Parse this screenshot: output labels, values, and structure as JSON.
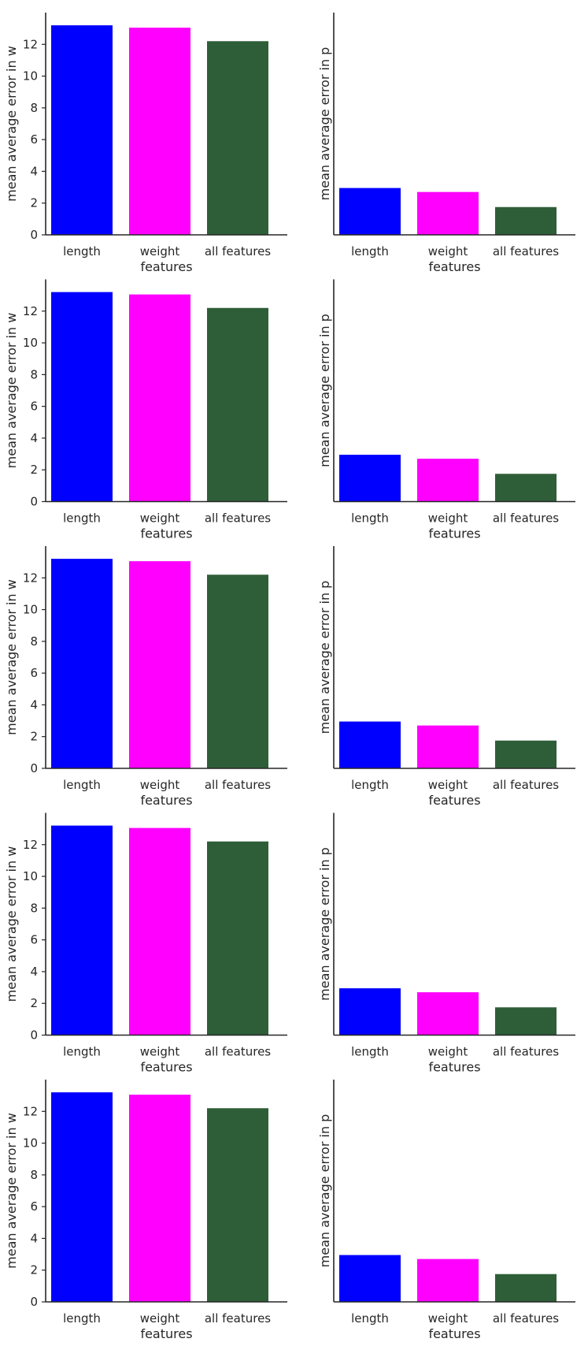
{
  "colors": {
    "length": "#0000ff",
    "weight": "#ff00ff",
    "all_features": "#2e5e38",
    "axis": "#262626",
    "background": "#ffffff"
  },
  "chart_data": [
    {
      "type": "bar",
      "categories": [
        "length",
        "weight",
        "all features"
      ],
      "values": [
        13.2,
        13.05,
        12.2
      ],
      "xlabel": "features",
      "ylabel": "mean average error in w",
      "ylim": [
        0,
        14
      ],
      "yticks": [
        0,
        2,
        4,
        6,
        8,
        10,
        12
      ],
      "grid": false
    },
    {
      "type": "bar",
      "categories": [
        "length",
        "weight",
        "all features"
      ],
      "values": [
        2.95,
        2.7,
        1.75
      ],
      "xlabel": "features",
      "ylabel": "mean average error in p",
      "ylim": [
        0,
        14
      ],
      "yticks": [],
      "grid": false
    },
    {
      "type": "bar",
      "categories": [
        "length",
        "weight",
        "all features"
      ],
      "values": [
        13.2,
        13.05,
        12.2
      ],
      "xlabel": "features",
      "ylabel": "mean average error in w",
      "ylim": [
        0,
        14
      ],
      "yticks": [
        0,
        2,
        4,
        6,
        8,
        10,
        12
      ],
      "grid": false
    },
    {
      "type": "bar",
      "categories": [
        "length",
        "weight",
        "all features"
      ],
      "values": [
        2.95,
        2.7,
        1.75
      ],
      "xlabel": "features",
      "ylabel": "mean average error in p",
      "ylim": [
        0,
        14
      ],
      "yticks": [],
      "grid": false
    },
    {
      "type": "bar",
      "categories": [
        "length",
        "weight",
        "all features"
      ],
      "values": [
        13.2,
        13.05,
        12.2
      ],
      "xlabel": "features",
      "ylabel": "mean average error in w",
      "ylim": [
        0,
        14
      ],
      "yticks": [
        0,
        2,
        4,
        6,
        8,
        10,
        12
      ],
      "grid": false
    },
    {
      "type": "bar",
      "categories": [
        "length",
        "weight",
        "all features"
      ],
      "values": [
        2.95,
        2.7,
        1.75
      ],
      "xlabel": "features",
      "ylabel": "mean average error in p",
      "ylim": [
        0,
        14
      ],
      "yticks": [],
      "grid": false
    },
    {
      "type": "bar",
      "categories": [
        "length",
        "weight",
        "all features"
      ],
      "values": [
        13.2,
        13.05,
        12.2
      ],
      "xlabel": "features",
      "ylabel": "mean average error in w",
      "ylim": [
        0,
        14
      ],
      "yticks": [
        0,
        2,
        4,
        6,
        8,
        10,
        12
      ],
      "grid": false
    },
    {
      "type": "bar",
      "categories": [
        "length",
        "weight",
        "all features"
      ],
      "values": [
        2.95,
        2.7,
        1.75
      ],
      "xlabel": "features",
      "ylabel": "mean average error in p",
      "ylim": [
        0,
        14
      ],
      "yticks": [],
      "grid": false
    },
    {
      "type": "bar",
      "categories": [
        "length",
        "weight",
        "all features"
      ],
      "values": [
        13.2,
        13.05,
        12.2
      ],
      "xlabel": "features",
      "ylabel": "mean average error in w",
      "ylim": [
        0,
        14
      ],
      "yticks": [
        0,
        2,
        4,
        6,
        8,
        10,
        12
      ],
      "grid": false
    },
    {
      "type": "bar",
      "categories": [
        "length",
        "weight",
        "all features"
      ],
      "values": [
        2.95,
        2.7,
        1.75
      ],
      "xlabel": "features",
      "ylabel": "mean average error in p",
      "ylim": [
        0,
        14
      ],
      "yticks": [],
      "grid": false
    }
  ]
}
